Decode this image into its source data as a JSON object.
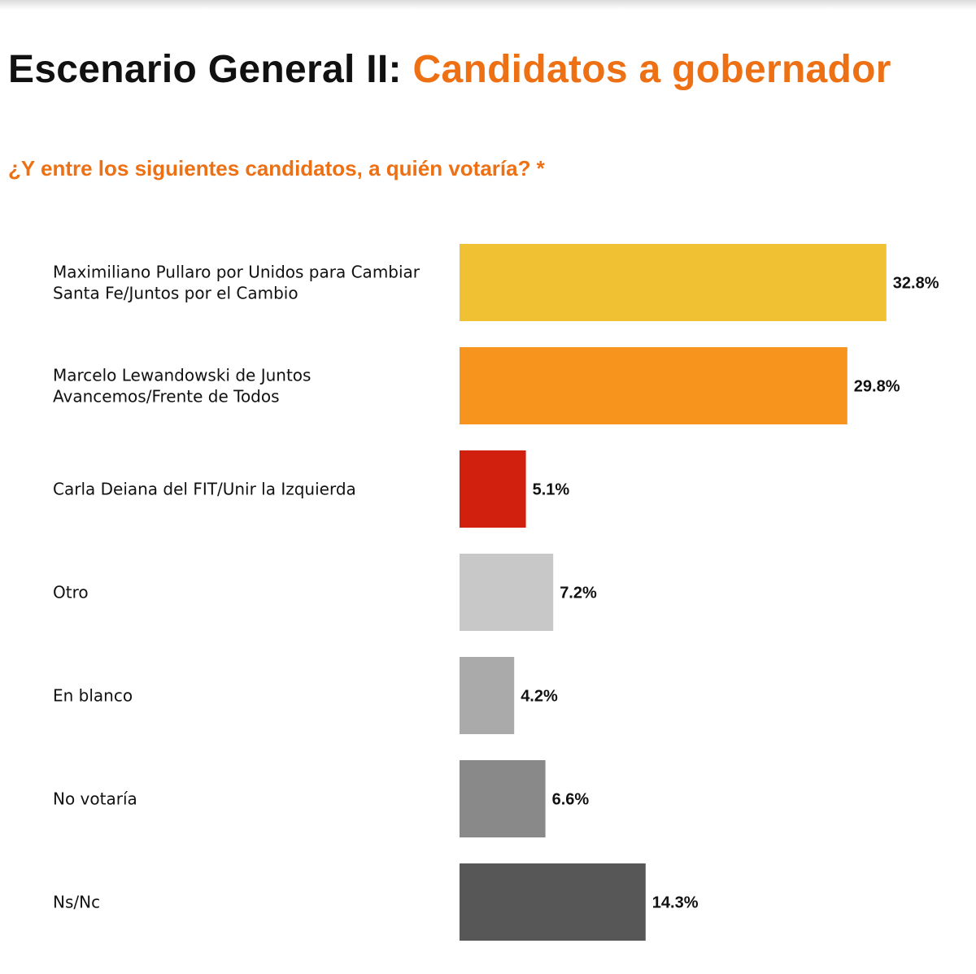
{
  "header": {
    "title_part1": "Escenario General II:",
    "title_part2": "Candidatos a gobernador",
    "subtitle": "¿Y entre los siguientes candidatos, a quién votaría? *"
  },
  "chart_data": {
    "type": "bar",
    "orientation": "horizontal",
    "title": "Escenario General II: Candidatos a gobernador",
    "subtitle": "¿Y entre los siguientes candidatos, a quién votaría? *",
    "categories": [
      [
        "Maximiliano Pullaro por Unidos para Cambiar",
        "Santa Fe/Juntos por el Cambio"
      ],
      [
        "Marcelo Lewandowski de Juntos",
        "Avancemos/Frente de Todos"
      ],
      [
        "Carla Deiana del FIT/Unir la Izquierda"
      ],
      [
        "Otro"
      ],
      [
        "En blanco"
      ],
      [
        "No votaría"
      ],
      [
        "Ns/Nc"
      ]
    ],
    "values": [
      32.8,
      29.8,
      5.1,
      7.2,
      4.2,
      6.6,
      14.3
    ],
    "value_labels": [
      "32.8%",
      "29.8%",
      "5.1%",
      "7.2%",
      "4.2%",
      "6.6%",
      "14.3%"
    ],
    "colors": [
      "#f0c233",
      "#f7941d",
      "#d2200f",
      "#c8c8c8",
      "#aaaaaa",
      "#898989",
      "#575757"
    ],
    "unit": "%",
    "grid": false,
    "axes_visible": false
  }
}
